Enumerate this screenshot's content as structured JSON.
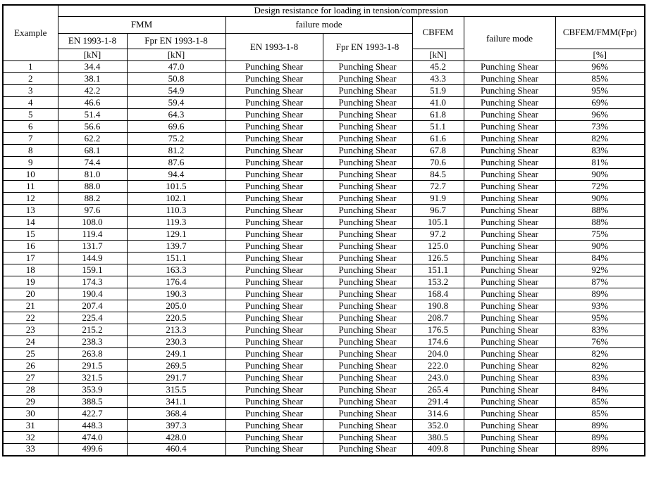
{
  "table": {
    "title_row": "Design resistance for loading in tension/compression",
    "header": {
      "example": "Example",
      "fmm": "FMM",
      "failure_mode": "failure mode",
      "cbfem": "CBFEM",
      "failure_mode_cbfem": "failure mode",
      "ratio": "CBFEM/FMM(Fpr)",
      "en_code": "EN 1993-1-8",
      "fpr_code": "Fpr EN 1993-1-8",
      "en_code_fm": "EN 1993-1-8",
      "fpr_code_fm": "Fpr EN 1993-1-8",
      "unit_kn": "[kN]",
      "unit_pct": "[%]"
    },
    "columns": [
      "example",
      "fmm_en",
      "fmm_fpr",
      "fm_en",
      "fm_fpr",
      "cbfem",
      "fm_cbfem",
      "ratio"
    ],
    "rows": [
      [
        "1",
        "34.4",
        "47.0",
        "Punching Shear",
        "Punching Shear",
        "45.2",
        "Punching Shear",
        "96%"
      ],
      [
        "2",
        "38.1",
        "50.8",
        "Punching Shear",
        "Punching Shear",
        "43.3",
        "Punching Shear",
        "85%"
      ],
      [
        "3",
        "42.2",
        "54.9",
        "Punching Shear",
        "Punching Shear",
        "51.9",
        "Punching Shear",
        "95%"
      ],
      [
        "4",
        "46.6",
        "59.4",
        "Punching Shear",
        "Punching Shear",
        "41.0",
        "Punching Shear",
        "69%"
      ],
      [
        "5",
        "51.4",
        "64.3",
        "Punching Shear",
        "Punching Shear",
        "61.8",
        "Punching Shear",
        "96%"
      ],
      [
        "6",
        "56.6",
        "69.6",
        "Punching Shear",
        "Punching Shear",
        "51.1",
        "Punching Shear",
        "73%"
      ],
      [
        "7",
        "62.2",
        "75.2",
        "Punching Shear",
        "Punching Shear",
        "61.6",
        "Punching Shear",
        "82%"
      ],
      [
        "8",
        "68.1",
        "81.2",
        "Punching Shear",
        "Punching Shear",
        "67.8",
        "Punching Shear",
        "83%"
      ],
      [
        "9",
        "74.4",
        "87.6",
        "Punching Shear",
        "Punching Shear",
        "70.6",
        "Punching Shear",
        "81%"
      ],
      [
        "10",
        "81.0",
        "94.4",
        "Punching Shear",
        "Punching Shear",
        "84.5",
        "Punching Shear",
        "90%"
      ],
      [
        "11",
        "88.0",
        "101.5",
        "Punching Shear",
        "Punching Shear",
        "72.7",
        "Punching Shear",
        "72%"
      ],
      [
        "12",
        "88.2",
        "102.1",
        "Punching Shear",
        "Punching Shear",
        "91.9",
        "Punching Shear",
        "90%"
      ],
      [
        "13",
        "97.6",
        "110.3",
        "Punching Shear",
        "Punching Shear",
        "96.7",
        "Punching Shear",
        "88%"
      ],
      [
        "14",
        "108.0",
        "119.3",
        "Punching Shear",
        "Punching Shear",
        "105.1",
        "Punching Shear",
        "88%"
      ],
      [
        "15",
        "119.4",
        "129.1",
        "Punching Shear",
        "Punching Shear",
        "97.2",
        "Punching Shear",
        "75%"
      ],
      [
        "16",
        "131.7",
        "139.7",
        "Punching Shear",
        "Punching Shear",
        "125.0",
        "Punching Shear",
        "90%"
      ],
      [
        "17",
        "144.9",
        "151.1",
        "Punching Shear",
        "Punching Shear",
        "126.5",
        "Punching Shear",
        "84%"
      ],
      [
        "18",
        "159.1",
        "163.3",
        "Punching Shear",
        "Punching Shear",
        "151.1",
        "Punching Shear",
        "92%"
      ],
      [
        "19",
        "174.3",
        "176.4",
        "Punching Shear",
        "Punching Shear",
        "153.2",
        "Punching Shear",
        "87%"
      ],
      [
        "20",
        "190.4",
        "190.3",
        "Punching Shear",
        "Punching Shear",
        "168.4",
        "Punching Shear",
        "89%"
      ],
      [
        "21",
        "207.4",
        "205.0",
        "Punching Shear",
        "Punching Shear",
        "190.8",
        "Punching Shear",
        "93%"
      ],
      [
        "22",
        "225.4",
        "220.5",
        "Punching Shear",
        "Punching Shear",
        "208.7",
        "Punching Shear",
        "95%"
      ],
      [
        "23",
        "215.2",
        "213.3",
        "Punching Shear",
        "Punching Shear",
        "176.5",
        "Punching Shear",
        "83%"
      ],
      [
        "24",
        "238.3",
        "230.3",
        "Punching Shear",
        "Punching Shear",
        "174.6",
        "Punching Shear",
        "76%"
      ],
      [
        "25",
        "263.8",
        "249.1",
        "Punching Shear",
        "Punching Shear",
        "204.0",
        "Punching Shear",
        "82%"
      ],
      [
        "26",
        "291.5",
        "269.5",
        "Punching Shear",
        "Punching Shear",
        "222.0",
        "Punching Shear",
        "82%"
      ],
      [
        "27",
        "321.5",
        "291.7",
        "Punching Shear",
        "Punching Shear",
        "243.0",
        "Punching Shear",
        "83%"
      ],
      [
        "28",
        "353.9",
        "315.5",
        "Punching Shear",
        "Punching Shear",
        "265.4",
        "Punching Shear",
        "84%"
      ],
      [
        "29",
        "388.5",
        "341.1",
        "Punching Shear",
        "Punching Shear",
        "291.4",
        "Punching Shear",
        "85%"
      ],
      [
        "30",
        "422.7",
        "368.4",
        "Punching Shear",
        "Punching Shear",
        "314.6",
        "Punching Shear",
        "85%"
      ],
      [
        "31",
        "448.3",
        "397.3",
        "Punching Shear",
        "Punching Shear",
        "352.0",
        "Punching Shear",
        "89%"
      ],
      [
        "32",
        "474.0",
        "428.0",
        "Punching Shear",
        "Punching Shear",
        "380.5",
        "Punching Shear",
        "89%"
      ],
      [
        "33",
        "499.6",
        "460.4",
        "Punching Shear",
        "Punching Shear",
        "409.8",
        "Punching Shear",
        "89%"
      ]
    ]
  }
}
